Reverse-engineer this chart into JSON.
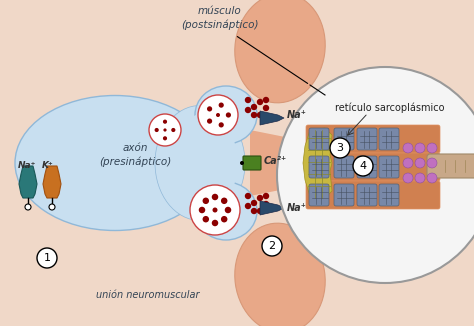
{
  "bg_color": "#f0d8c8",
  "labels": {
    "axon": "axón\n(presináptico)",
    "muscle": "músculo\n(postsináptico)",
    "junction": "unión neuromuscular",
    "reticulo": "retículo sarcoplásmico",
    "na_top": "Na⁺",
    "na_bottom": "Na⁺",
    "ca": "Ca²⁺",
    "na_ion": "Na⁺",
    "k_ion": "K⁺"
  },
  "axon_color": "#c8dff0",
  "axon_border": "#90b8d8",
  "muscle_color": "#e8a888",
  "muscle_color2": "#d89878",
  "dot_color": "#8b0000",
  "channel_color_na": "#2a5a7a",
  "channel_color_ca": "#4a8020",
  "vesicle_border": "#cc4444",
  "circle_color": "#ffffff",
  "fiber_orange": "#d08050",
  "fiber_orange2": "#e09060",
  "myofibril_blue": "#7888a8",
  "yellow_net": "#c8b840",
  "purple_dots": "#9060a0",
  "na_teal": "#2a7878",
  "k_orange": "#c87020",
  "text_color": "#333333"
}
